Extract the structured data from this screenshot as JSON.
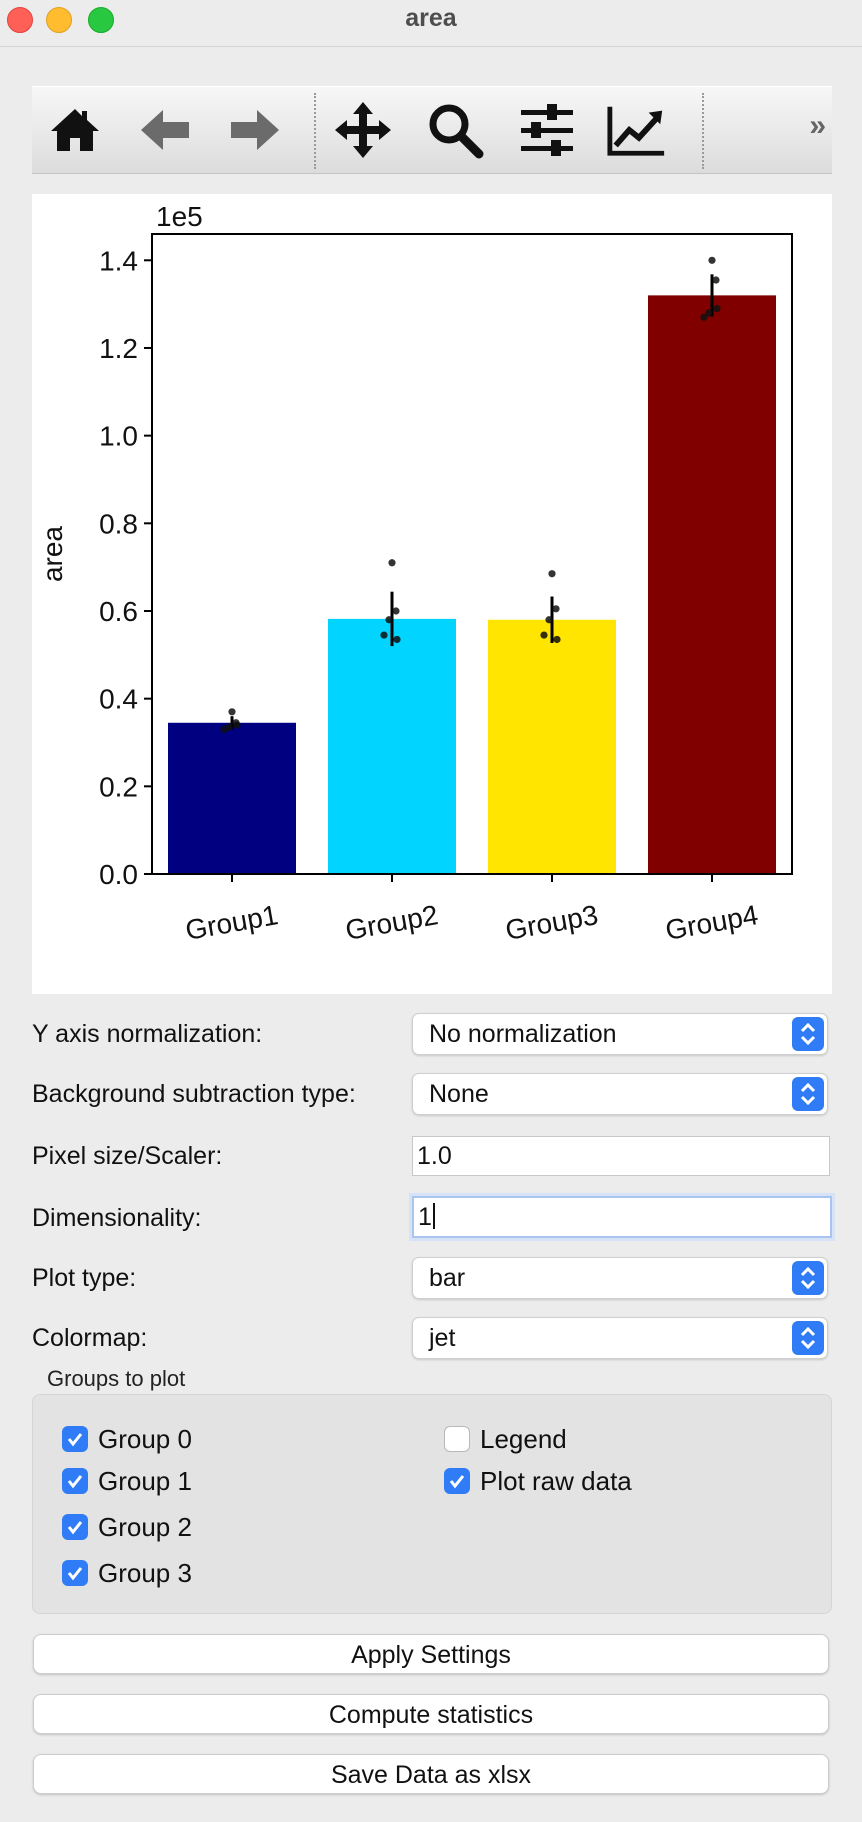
{
  "window": {
    "title": "area"
  },
  "toolbar": {
    "buttons": [
      "home-icon",
      "back-arrow-icon",
      "forward-arrow-icon",
      "move-icon",
      "zoom-icon",
      "configure-icon",
      "edit-curves-icon"
    ],
    "more": "»"
  },
  "chart_data": {
    "type": "bar",
    "categories": [
      "Group1",
      "Group2",
      "Group3",
      "Group4"
    ],
    "values": [
      34500,
      58200,
      58000,
      132000
    ],
    "errors": [
      1500,
      6200,
      5300,
      4800
    ],
    "colors": [
      "#000080",
      "#00d4ff",
      "#ffe500",
      "#800000"
    ],
    "raw_points": [
      [
        37000,
        34500,
        33500,
        33000,
        34000
      ],
      [
        71000,
        60000,
        58000,
        54500,
        53500
      ],
      [
        68500,
        60500,
        58000,
        54500,
        53500
      ],
      [
        140000,
        135500,
        128000,
        127000,
        129000
      ]
    ],
    "ylabel": "area",
    "xlabel": "",
    "title": "",
    "ylim": [
      0,
      146000
    ],
    "yticks": [
      0,
      20000,
      40000,
      60000,
      80000,
      100000,
      120000,
      140000
    ],
    "ytick_labels": [
      "0.0",
      "0.2",
      "0.4",
      "0.6",
      "0.8",
      "1.0",
      "1.2",
      "1.4"
    ],
    "offset_text": "1e5",
    "grid": false
  },
  "settings": {
    "y_norm": {
      "label": "Y axis normalization:",
      "value": "No normalization"
    },
    "bg_sub": {
      "label": "Background subtraction type:",
      "value": "None"
    },
    "pixel": {
      "label": "Pixel size/Scaler:",
      "value": "1.0"
    },
    "dim": {
      "label": "Dimensionality:",
      "value": "1"
    },
    "plot_type": {
      "label": "Plot type:",
      "value": "bar"
    },
    "cmap": {
      "label": "Colormap:",
      "value": "jet"
    }
  },
  "groups": {
    "title": "Groups to plot",
    "items": [
      {
        "label": "Group 0",
        "checked": true
      },
      {
        "label": "Group 1",
        "checked": true
      },
      {
        "label": "Group 2",
        "checked": true
      },
      {
        "label": "Group 3",
        "checked": true
      }
    ],
    "legend": {
      "label": "Legend",
      "checked": false
    },
    "raw": {
      "label": "Plot raw data",
      "checked": true
    }
  },
  "buttons": {
    "apply": "Apply Settings",
    "stats": "Compute statistics",
    "save": "Save Data as xlsx"
  }
}
